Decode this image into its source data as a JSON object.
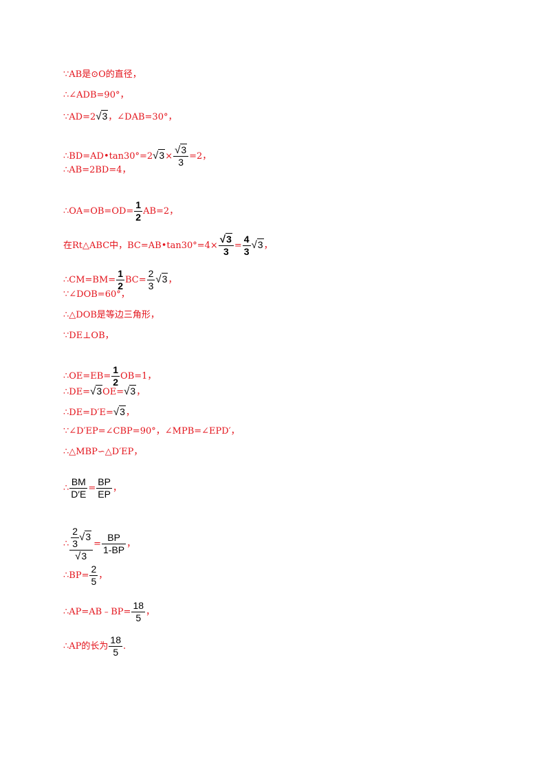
{
  "lines": [
    "∵AB是⊙O的直径，",
    "∴∠ADB=90°，",
    "∵AD=2√3，∠DAB=30°，",
    "∴BD=AD•tan30°=2√3×",
    "∴AB=2BD=4，",
    "∴OA=OB=OD=",
    "在Rt△ABC中，BC=AB•tan30°=4×",
    "∴CM=BM=",
    "∵∠DOB=60°，",
    "∴△DOB是等边三角形，",
    "∵DE⊥OB，",
    "∴OE=EB=",
    "∴DE=√3OE=√3，",
    "∴DE=D′E=√3，",
    "∵∠D′EP=∠CBP=90°，∠MPB=∠EPD′，",
    "∴△MBP∽△D′EP，",
    "∴",
    "∴",
    "∴BP=",
    "∴AP=AB﹣BP=",
    "∴AP的长为"
  ],
  "content": {
    "l1": "∵AB是⊙O的直径，",
    "l2": "∴∠ADB=90°，",
    "l3a": "∵AD=2",
    "l3b": "，∠DAB=30°，",
    "l4a": "∴BD=AD•tan30°=2",
    "l4b": "×",
    "l4c": "=2，",
    "l5": "∴AB=2BD=4，",
    "l6a": "∴OA=OB=OD=",
    "l6b": "AB=2，",
    "l7a": "在Rt△ABC中，BC=AB•tan30°=4×",
    "l7b": "=",
    "l7c": "，",
    "l8a": "∴CM=BM=",
    "l8b": "BC=",
    "l8c": "，",
    "l9": "∵∠DOB=60°，",
    "l10": "∴△DOB是等边三角形，",
    "l11": "∵DE⊥OB，",
    "l12a": "∴OE=EB=",
    "l12b": "OB=1，",
    "l13a": "∴DE=",
    "l13b": "OE=",
    "l13c": "，",
    "l14a": "∴DE=D′E=",
    "l14b": "，",
    "l15": "∵∠D′EP=∠CBP=90°，∠MPB=∠EPD′，",
    "l16": "∴△MBP∽△D′EP，",
    "l17a": "∴",
    "l17b": "=",
    "l17c": "，",
    "l18a": "∴",
    "l18b": "=",
    "l18c": "，",
    "l19a": "∴BP=",
    "l19b": "，",
    "l20a": "∴AP=AB﹣BP=",
    "l20b": "，",
    "l21a": "∴AP的长为",
    "l21b": "."
  },
  "math": {
    "sqrt3": "3",
    "half_num": "1",
    "half_den": "2",
    "two_thirds_num": "2",
    "three": "3",
    "four": "4",
    "bm": "BM",
    "de_prime": "D′E",
    "bp": "BP",
    "one_minus_bp": "1-BP",
    "two": "2",
    "five": "5",
    "eighteen": "18"
  },
  "colors": {
    "text": "#e3131b",
    "math": "#000000",
    "background": "#ffffff"
  }
}
